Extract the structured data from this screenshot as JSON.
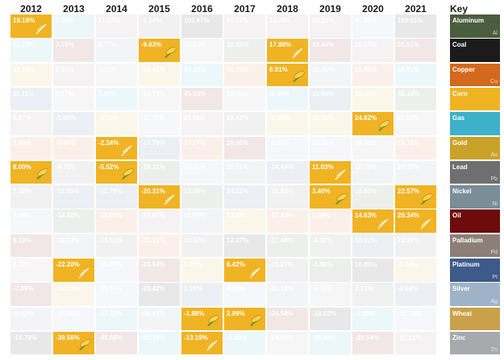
{
  "chart_data": {
    "type": "table",
    "years": [
      "2012",
      "2013",
      "2014",
      "2015",
      "2016",
      "2017",
      "2018",
      "2019",
      "2020",
      "2021"
    ],
    "key_label": "Key",
    "commodities": [
      {
        "name": "Aluminum",
        "symbol": "Al",
        "color": "#4a5d3e"
      },
      {
        "name": "Coal",
        "symbol": "",
        "color": "#1b1b1b"
      },
      {
        "name": "Copper",
        "symbol": "Cu",
        "color": "#d2691e"
      },
      {
        "name": "Corn",
        "symbol": "",
        "color": "#f0b323"
      },
      {
        "name": "Gas",
        "symbol": "",
        "color": "#3fb0c9"
      },
      {
        "name": "Gold",
        "symbol": "Au",
        "color": "#c9a227"
      },
      {
        "name": "Lead",
        "symbol": "Pb",
        "color": "#6f6f6f"
      },
      {
        "name": "Nickel",
        "symbol": "Ni",
        "color": "#7a8d99"
      },
      {
        "name": "Oil",
        "symbol": "",
        "color": "#6e0b0b"
      },
      {
        "name": "Palladium",
        "symbol": "Pd",
        "color": "#8c7f78"
      },
      {
        "name": "Platinum",
        "symbol": "Pt",
        "color": "#3e5a8a"
      },
      {
        "name": "Silver",
        "symbol": "Ag",
        "color": "#9fb3c8"
      },
      {
        "name": "Wheat",
        "symbol": "",
        "color": "#c9a14a"
      },
      {
        "name": "Zinc",
        "symbol": "Zn",
        "color": "#a7a9ac"
      }
    ],
    "highlight_color": "#f0b323",
    "columns": [
      {
        "year": "2012",
        "cells": [
          {
            "value": "19.19%",
            "c": "Wheat",
            "hl": true
          },
          {
            "value": "15.73%",
            "c": "Gas",
            "hl": false
          },
          {
            "value": "12.16%",
            "c": "Gold",
            "hl": false
          },
          {
            "value": "11.11%",
            "c": "Platinum",
            "hl": false
          },
          {
            "value": "5.87%",
            "c": "Palladium",
            "hl": false
          },
          {
            "value": "3.00%",
            "c": "Copper",
            "hl": false
          },
          {
            "value": "8.00%",
            "c": "Corn",
            "hl": true
          },
          {
            "value": "7.32%",
            "c": "Lead",
            "hl": false
          },
          {
            "value": "7.14%",
            "c": "Silver",
            "hl": false
          },
          {
            "value": "6.18%",
            "c": "Oil",
            "hl": false
          },
          {
            "value": "2.33%",
            "c": "Zinc",
            "hl": false
          },
          {
            "value": "-7.89%",
            "c": "Oil",
            "hl": false
          },
          {
            "value": "-9.22%",
            "c": "Nickel",
            "hl": false
          },
          {
            "value": "-16.79%",
            "c": "Coal",
            "hl": false
          }
        ]
      },
      {
        "year": "2013",
        "cells": [
          {
            "value": "8.35%",
            "c": "Gas",
            "hl": false
          },
          {
            "value": "7.19%",
            "c": "Oil",
            "hl": false
          },
          {
            "value": "5.30%",
            "c": "Palladium",
            "hl": false
          },
          {
            "value": "0.17%",
            "c": "Zinc",
            "hl": false
          },
          {
            "value": "-1.00%",
            "c": "Platinum",
            "hl": false
          },
          {
            "value": "-5.84%",
            "c": "Copper",
            "hl": false
          },
          {
            "value": "-8.72%",
            "c": "Lead",
            "hl": false
          },
          {
            "value": "-11.03%",
            "c": "Platinum",
            "hl": false
          },
          {
            "value": "-14.02%",
            "c": "Aluminum",
            "hl": false
          },
          {
            "value": "-18.02%",
            "c": "Nickel",
            "hl": false
          },
          {
            "value": "-22.20%",
            "c": "Wheat",
            "hl": true
          },
          {
            "value": "-28.04%",
            "c": "Gold",
            "hl": false
          },
          {
            "value": "-35.96%",
            "c": "Silver",
            "hl": false
          },
          {
            "value": "-39.56%",
            "c": "Corn",
            "hl": true
          }
        ]
      },
      {
        "year": "2014",
        "cells": [
          {
            "value": "11.00%",
            "c": "Palladium",
            "hl": false
          },
          {
            "value": "8.77%",
            "c": "Nickel",
            "hl": false
          },
          {
            "value": "3.31%",
            "c": "Zinc",
            "hl": false
          },
          {
            "value": "3.89%",
            "c": "Gas",
            "hl": false
          },
          {
            "value": "-1.72%",
            "c": "Gold",
            "hl": false
          },
          {
            "value": "-2.24%",
            "c": "Wheat",
            "hl": true
          },
          {
            "value": "-5.52%",
            "c": "Corn",
            "hl": true
          },
          {
            "value": "-11.79%",
            "c": "Platinum",
            "hl": false
          },
          {
            "value": "-14.03%",
            "c": "Copper",
            "hl": false
          },
          {
            "value": "-15.51%",
            "c": "Lead",
            "hl": false
          },
          {
            "value": "-19.50%",
            "c": "Silver",
            "hl": false
          },
          {
            "value": "-19.92%",
            "c": "Silver",
            "hl": false
          },
          {
            "value": "-37.31%",
            "c": "Gas",
            "hl": false
          },
          {
            "value": "-45.58%",
            "c": "Oil",
            "hl": false
          }
        ]
      },
      {
        "year": "2015",
        "cells": [
          {
            "value": "-2.24%",
            "c": "Lead",
            "hl": false
          },
          {
            "value": "-9.63%",
            "c": "Corn",
            "hl": true
          },
          {
            "value": "-10.42%",
            "c": "Gold",
            "hl": false
          },
          {
            "value": "-10.72%",
            "c": "Zinc",
            "hl": false
          },
          {
            "value": "-11.79%",
            "c": "Silver",
            "hl": false
          },
          {
            "value": "-17.79%",
            "c": "Platinum",
            "hl": false
          },
          {
            "value": "-19.31%",
            "c": "Aluminum",
            "hl": false
          },
          {
            "value": "-20.31%",
            "c": "Wheat",
            "hl": true
          },
          {
            "value": "-20.97%",
            "c": "Palladium",
            "hl": false
          },
          {
            "value": "-25.16%",
            "c": "Copper",
            "hl": false
          },
          {
            "value": "-26.54%",
            "c": "Oil",
            "hl": false
          },
          {
            "value": "-29.42%",
            "c": "Coal",
            "hl": false
          },
          {
            "value": "-30.47%",
            "c": "Nickel",
            "hl": false
          },
          {
            "value": "-41.75%",
            "c": "Gas",
            "hl": false
          }
        ]
      },
      {
        "year": "2016",
        "cells": [
          {
            "value": "103.67%",
            "c": "Coal",
            "hl": false
          },
          {
            "value": "60.59%",
            "c": "Zinc",
            "hl": false
          },
          {
            "value": "59.15%",
            "c": "Gas",
            "hl": false
          },
          {
            "value": "45.03%",
            "c": "Oil",
            "hl": false
          },
          {
            "value": "20.96%",
            "c": "Palladium",
            "hl": false
          },
          {
            "value": "17.27%",
            "c": "Copper",
            "hl": false
          },
          {
            "value": "15.31%",
            "c": "Silver",
            "hl": false
          },
          {
            "value": "13.56%",
            "c": "Aluminum",
            "hl": false
          },
          {
            "value": "11.59%",
            "c": "Nickel",
            "hl": false
          },
          {
            "value": "10.37%",
            "c": "Lead",
            "hl": false
          },
          {
            "value": "9.00%",
            "c": "Gold",
            "hl": false
          },
          {
            "value": "1.16%",
            "c": "Platinum",
            "hl": false
          },
          {
            "value": "-1.88%",
            "c": "Corn",
            "hl": true
          },
          {
            "value": "-13.19%",
            "c": "Wheat",
            "hl": true
          }
        ]
      },
      {
        "year": "2017",
        "cells": [
          {
            "value": "54.37%",
            "c": "Palladium",
            "hl": false
          },
          {
            "value": "32.38%",
            "c": "Aluminum",
            "hl": false
          },
          {
            "value": "31.19%",
            "c": "Copper",
            "hl": false
          },
          {
            "value": "28.49%",
            "c": "Zinc",
            "hl": false
          },
          {
            "value": "28.43%",
            "c": "Lead",
            "hl": false
          },
          {
            "value": "26.95%",
            "c": "Oil",
            "hl": false
          },
          {
            "value": "27.91%",
            "c": "Nickel",
            "hl": false
          },
          {
            "value": "24.22%",
            "c": "Platinum",
            "hl": false
          },
          {
            "value": "13.09%",
            "c": "Gold",
            "hl": false
          },
          {
            "value": "12.47%",
            "c": "Coal",
            "hl": false
          },
          {
            "value": "6.42%",
            "c": "Wheat",
            "hl": true
          },
          {
            "value": "4.98%",
            "c": "Silver",
            "hl": false
          },
          {
            "value": "2.99%",
            "c": "Corn",
            "hl": true
          },
          {
            "value": "-6.30%",
            "c": "Gas",
            "hl": false
          }
        ]
      },
      {
        "year": "2018",
        "cells": [
          {
            "value": "18.08%",
            "c": "Palladium",
            "hl": false
          },
          {
            "value": "17.86%",
            "c": "Wheat",
            "hl": true
          },
          {
            "value": "6.91%",
            "c": "Corn",
            "hl": true
          },
          {
            "value": "-0.46%",
            "c": "Gas",
            "hl": false
          },
          {
            "value": "-1.58%",
            "c": "Gold",
            "hl": false
          },
          {
            "value": "-8.52%",
            "c": "Silver",
            "hl": false
          },
          {
            "value": "-14.49%",
            "c": "Platinum",
            "hl": false
          },
          {
            "value": "-16.83%",
            "c": "Lead",
            "hl": false
          },
          {
            "value": "-17.43%",
            "c": "Copper",
            "hl": false
          },
          {
            "value": "-17.48%",
            "c": "Aluminum",
            "hl": false
          },
          {
            "value": "-19.27%",
            "c": "Lead",
            "hl": false
          },
          {
            "value": "-22.18%",
            "c": "Nickel",
            "hl": false
          },
          {
            "value": "-24.54%",
            "c": "Oil",
            "hl": false
          },
          {
            "value": "-24.84%",
            "c": "Zinc",
            "hl": false
          }
        ]
      },
      {
        "year": "2019",
        "cells": [
          {
            "value": "54.22%",
            "c": "Palladium",
            "hl": false
          },
          {
            "value": "34.46%",
            "c": "Oil",
            "hl": false
          },
          {
            "value": "32.45%",
            "c": "Nickel",
            "hl": false
          },
          {
            "value": "21.96%",
            "c": "Platinum",
            "hl": false
          },
          {
            "value": "18.31%",
            "c": "Gold",
            "hl": false
          },
          {
            "value": "15.32%",
            "c": "Silver",
            "hl": false
          },
          {
            "value": "11.03%",
            "c": "Wheat",
            "hl": true
          },
          {
            "value": "3.40%",
            "c": "Corn",
            "hl": true
          },
          {
            "value": "3.38%",
            "c": "Copper",
            "hl": false
          },
          {
            "value": "-4.38%",
            "c": "Lead",
            "hl": false
          },
          {
            "value": "-4.86%",
            "c": "Aluminum",
            "hl": false
          },
          {
            "value": "-9.49%",
            "c": "Zinc",
            "hl": false
          },
          {
            "value": "-18.02%",
            "c": "Coal",
            "hl": false
          },
          {
            "value": "-25.54%",
            "c": "Gas",
            "hl": false
          }
        ]
      },
      {
        "year": "2020",
        "cells": [
          {
            "value": "47.89%",
            "c": "Silver",
            "hl": false
          },
          {
            "value": "26.07%",
            "c": "Palladium",
            "hl": false
          },
          {
            "value": "25.86%",
            "c": "Copper",
            "hl": false
          },
          {
            "value": "25.12%",
            "c": "Gold",
            "hl": false
          },
          {
            "value": "24.82%",
            "c": "Corn",
            "hl": true
          },
          {
            "value": "19.73%",
            "c": "Zinc",
            "hl": false
          },
          {
            "value": "18.57%",
            "c": "Nickel",
            "hl": false
          },
          {
            "value": "16.65%",
            "c": "Aluminum",
            "hl": false
          },
          {
            "value": "14.63%",
            "c": "Wheat",
            "hl": true
          },
          {
            "value": "10.92%",
            "c": "Platinum",
            "hl": false
          },
          {
            "value": "10.80%",
            "c": "Coal",
            "hl": false
          },
          {
            "value": "3.31%",
            "c": "Lead",
            "hl": false
          },
          {
            "value": "-1.29%",
            "c": "Gas",
            "hl": false
          },
          {
            "value": "-20.54%",
            "c": "Oil",
            "hl": false
          }
        ]
      },
      {
        "year": "2021",
        "cells": [
          {
            "value": "160.61%",
            "c": "Coal",
            "hl": false
          },
          {
            "value": "55.01%",
            "c": "Oil",
            "hl": false
          },
          {
            "value": "46.91%",
            "c": "Gas",
            "hl": false
          },
          {
            "value": "42.18%",
            "c": "Aluminum",
            "hl": false
          },
          {
            "value": "31.53%",
            "c": "Zinc",
            "hl": false
          },
          {
            "value": "25.73%",
            "c": "Copper",
            "hl": false
          },
          {
            "value": "25.10%",
            "c": "Nickel",
            "hl": false
          },
          {
            "value": "22.57%",
            "c": "Corn",
            "hl": true
          },
          {
            "value": "20.34%",
            "c": "Wheat",
            "hl": true
          },
          {
            "value": "18.39%",
            "c": "Lead",
            "hl": false
          },
          {
            "value": "-3.64%",
            "c": "Gold",
            "hl": false
          },
          {
            "value": "-9.64%",
            "c": "Platinum",
            "hl": false
          },
          {
            "value": "-11.72%",
            "c": "Silver",
            "hl": false
          },
          {
            "value": "-22.21%",
            "c": "Palladium",
            "hl": false
          }
        ]
      }
    ]
  }
}
